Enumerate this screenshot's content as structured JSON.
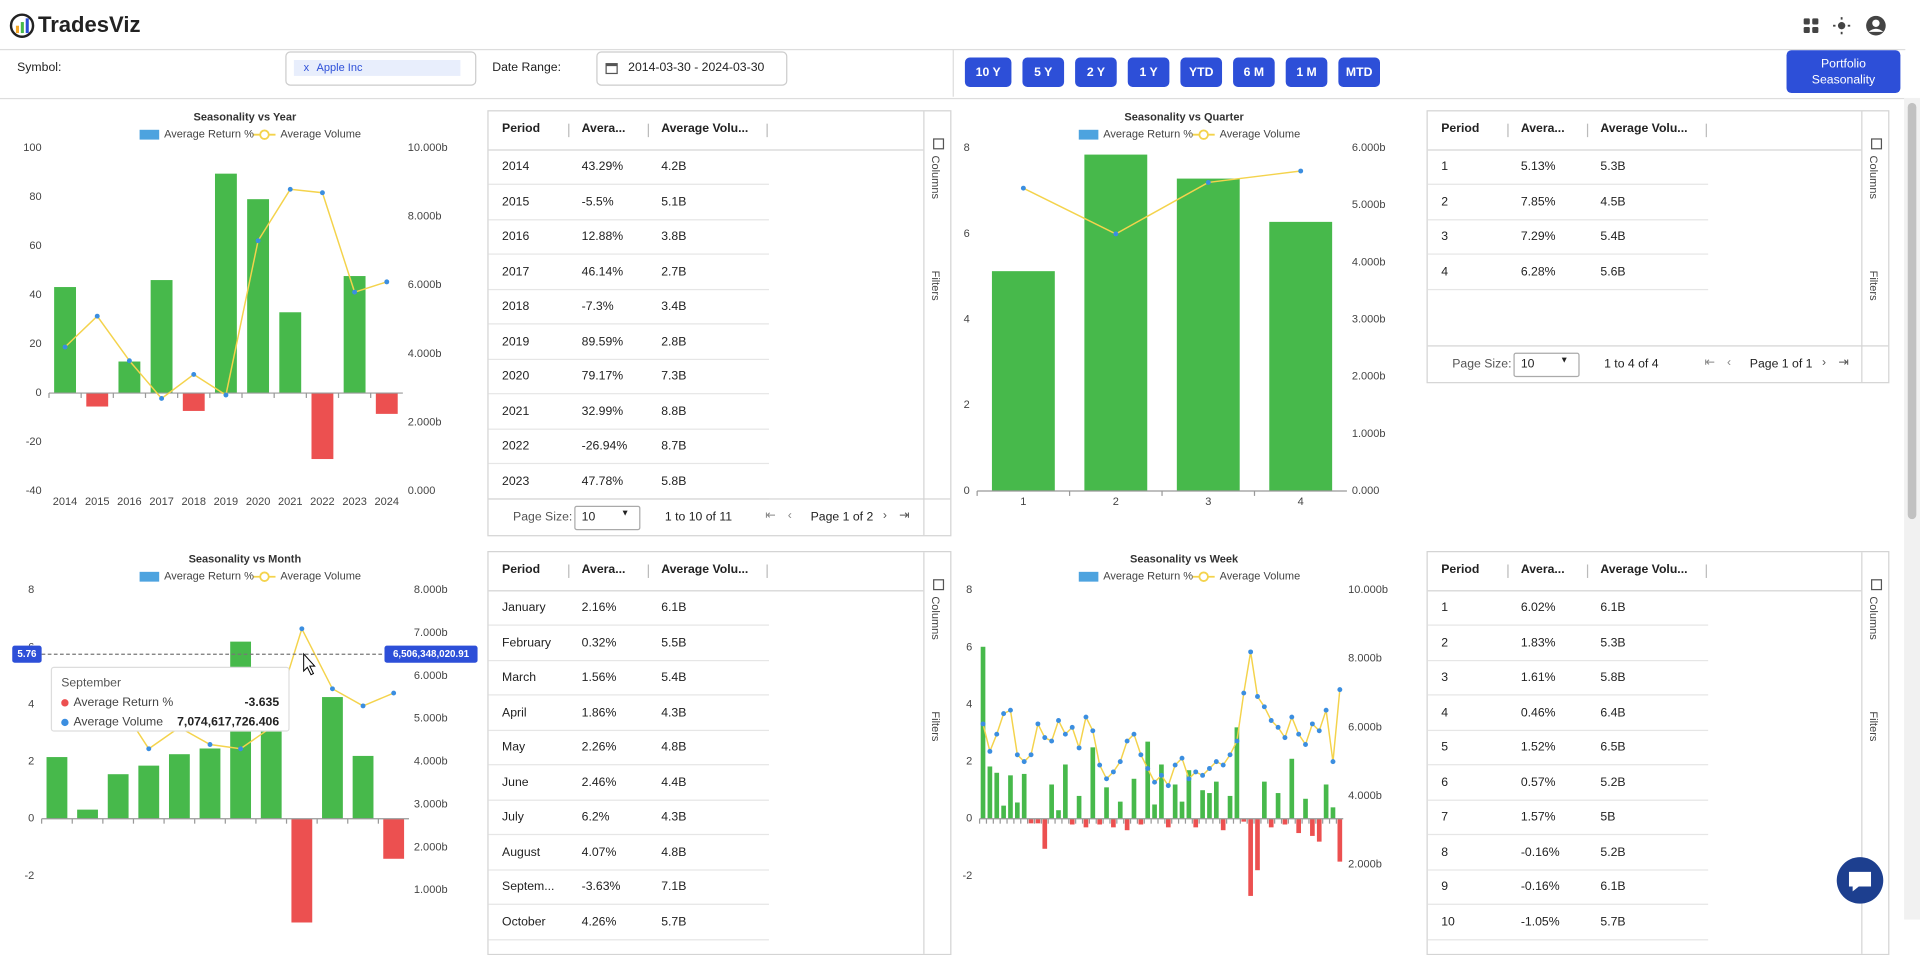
{
  "header": {
    "brand": "TradesViz"
  },
  "filters": {
    "symbol_label": "Symbol:",
    "symbol_chip_remove": "x",
    "symbol_value": "Apple Inc",
    "date_label": "Date Range:",
    "date_value": "2014-03-30 - 2024-03-30",
    "range_buttons": [
      "10 Y",
      "5 Y",
      "2 Y",
      "1 Y",
      "YTD",
      "6 M",
      "1 M",
      "MTD"
    ],
    "portfolio_button": "Portfolio Seasonality"
  },
  "chart_data": [
    {
      "type": "bar",
      "title": "Seasonality vs Year",
      "categories": [
        "2014",
        "2015",
        "2016",
        "2017",
        "2018",
        "2019",
        "2020",
        "2021",
        "2022",
        "2023",
        "2024"
      ],
      "series": [
        {
          "name": "Average Return %",
          "color": "#4da3df",
          "positive_color": "#47b94b",
          "negative_color": "#ec5050",
          "values": [
            43.29,
            -5.5,
            12.88,
            46.14,
            -7.3,
            89.59,
            79.17,
            32.99,
            -26.94,
            47.78,
            -8.5
          ]
        },
        {
          "name": "Average Volume",
          "type": "line",
          "axis": "y2",
          "color": "#f4d34c",
          "point_color": "#3b8ee0",
          "values": [
            4.2,
            5.1,
            3.8,
            2.7,
            3.4,
            2.8,
            7.3,
            8.8,
            8.7,
            5.8,
            6.1
          ]
        }
      ],
      "ylim": [
        -40,
        100
      ],
      "yticks": [
        -40,
        -20,
        0,
        20,
        40,
        60,
        80,
        100
      ],
      "y2lim": [
        0,
        10
      ],
      "y2ticks": [
        {
          "value": 0,
          "label": "0.000"
        },
        {
          "value": 2,
          "label": "2.000b"
        },
        {
          "value": 4,
          "label": "4.000b"
        },
        {
          "value": 6,
          "label": "6.000b"
        },
        {
          "value": 8,
          "label": "8.000b"
        },
        {
          "value": 10,
          "label": "10.000b"
        }
      ]
    },
    {
      "type": "bar",
      "title": "Seasonality vs Quarter",
      "categories": [
        "1",
        "2",
        "3",
        "4"
      ],
      "series": [
        {
          "name": "Average Return %",
          "color": "#4da3df",
          "positive_color": "#47b94b",
          "negative_color": "#ec5050",
          "values": [
            5.13,
            7.85,
            7.29,
            6.28
          ]
        },
        {
          "name": "Average Volume",
          "type": "line",
          "axis": "y2",
          "color": "#f4d34c",
          "point_color": "#3b8ee0",
          "values": [
            5.3,
            4.5,
            5.4,
            5.6
          ]
        }
      ],
      "ylim": [
        0,
        8
      ],
      "yticks": [
        0,
        2,
        4,
        6,
        8
      ],
      "y2lim": [
        0,
        6
      ],
      "y2ticks": [
        {
          "value": 0,
          "label": "0.000"
        },
        {
          "value": 1,
          "label": "1.000b"
        },
        {
          "value": 2,
          "label": "2.000b"
        },
        {
          "value": 3,
          "label": "3.000b"
        },
        {
          "value": 4,
          "label": "4.000b"
        },
        {
          "value": 5,
          "label": "5.000b"
        },
        {
          "value": 6,
          "label": "6.000b"
        }
      ]
    },
    {
      "type": "bar",
      "title": "Seasonality vs Month",
      "categories": [
        null,
        null,
        null,
        null,
        null,
        null,
        null,
        null,
        null,
        null,
        null,
        null
      ],
      "series": [
        {
          "name": "Average Return %",
          "color": "#4da3df",
          "positive_color": "#47b94b",
          "negative_color": "#ec5050",
          "values": [
            2.16,
            0.32,
            1.56,
            1.86,
            2.26,
            2.46,
            6.2,
            4.07,
            -3.63,
            4.26,
            2.2,
            -1.4
          ]
        },
        {
          "name": "Average Volume",
          "type": "line",
          "axis": "y2",
          "color": "#f4d34c",
          "point_color": "#3b8ee0",
          "values": [
            6.1,
            5.5,
            5.4,
            4.3,
            4.8,
            4.4,
            4.3,
            4.8,
            7.1,
            5.7,
            5.3,
            5.6
          ]
        }
      ],
      "ylim": [
        -4,
        8
      ],
      "yticks": [
        -2,
        0,
        2,
        4,
        6,
        8
      ],
      "y2lim": [
        0,
        8
      ],
      "y2ticks": [
        {
          "value": 1,
          "label": "1.000b"
        },
        {
          "value": 2,
          "label": "2.000b"
        },
        {
          "value": 3,
          "label": "3.000b"
        },
        {
          "value": 4,
          "label": "4.000b"
        },
        {
          "value": 5,
          "label": "5.000b"
        },
        {
          "value": 6,
          "label": "6.000b"
        },
        {
          "value": 7,
          "label": "7.000b"
        },
        {
          "value": 8,
          "label": "8.000b"
        }
      ],
      "crosshair": {
        "value": 5.76,
        "label": "5.76",
        "y2_label": "6,506,348,020.91"
      },
      "tooltip": {
        "title": "September",
        "rows": [
          {
            "name": "Average Return %",
            "value": "-3.635"
          },
          {
            "name": "Average Volume",
            "value": "7,074,617,726.406"
          }
        ]
      }
    },
    {
      "type": "bar",
      "title": "Seasonality vs Week",
      "categories": [
        null,
        null,
        null,
        null,
        null,
        null,
        null,
        null,
        null,
        null,
        null,
        null,
        null,
        null,
        null,
        null,
        null,
        null,
        null,
        null,
        null,
        null,
        null,
        null,
        null,
        null,
        null,
        null,
        null,
        null,
        null,
        null,
        null,
        null,
        null,
        null,
        null,
        null,
        null,
        null,
        null,
        null,
        null,
        null,
        null,
        null,
        null,
        null,
        null,
        null,
        null,
        null,
        null
      ],
      "series": [
        {
          "name": "Average Return %",
          "color": "#4da3df",
          "positive_color": "#47b94b",
          "negative_color": "#ec5050",
          "values": [
            6.02,
            1.83,
            1.61,
            0.46,
            1.52,
            0.57,
            1.57,
            -0.16,
            -0.16,
            -1.05,
            1.2,
            0.3,
            1.9,
            -0.2,
            0.8,
            -0.3,
            2.5,
            -0.2,
            1.1,
            -0.3,
            0.6,
            -0.4,
            1.4,
            -0.2,
            2.7,
            0.5,
            1.9,
            -0.3,
            1.2,
            0.6,
            1.7,
            -0.3,
            1.0,
            0.9,
            1.3,
            -0.4,
            0.8,
            3.2,
            -0.1,
            -2.7,
            -1.8,
            1.3,
            -0.3,
            0.9,
            -0.2,
            2.1,
            -0.5,
            0.7,
            -0.6,
            -0.8,
            1.2,
            0.4,
            -1.5
          ]
        },
        {
          "name": "Average Volume",
          "type": "line",
          "axis": "y2",
          "color": "#f4d34c",
          "point_color": "#3b8ee0",
          "values": [
            6.1,
            5.3,
            5.8,
            6.4,
            6.5,
            5.2,
            5.0,
            5.2,
            6.1,
            5.7,
            5.6,
            6.2,
            5.8,
            6.0,
            5.4,
            6.3,
            5.9,
            4.9,
            4.5,
            4.7,
            5.0,
            5.6,
            5.8,
            5.2,
            4.8,
            4.4,
            4.6,
            4.3,
            4.9,
            5.1,
            4.5,
            4.7,
            4.6,
            4.8,
            5.0,
            4.9,
            5.2,
            5.6,
            7.0,
            8.2,
            6.9,
            6.6,
            6.2,
            6.0,
            5.7,
            6.3,
            5.8,
            5.5,
            6.1,
            5.9,
            6.5,
            5.0,
            7.1
          ]
        }
      ],
      "ylim": [
        -4,
        8
      ],
      "yticks": [
        -2,
        0,
        2,
        4,
        6,
        8
      ],
      "y2lim": [
        0,
        10
      ],
      "y2ticks": [
        {
          "value": 2,
          "label": "2.000b"
        },
        {
          "value": 4,
          "label": "4.000b"
        },
        {
          "value": 6,
          "label": "6.000b"
        },
        {
          "value": 8,
          "label": "8.000b"
        },
        {
          "value": 10,
          "label": "10.000b"
        }
      ]
    }
  ],
  "tables": [
    {
      "headers": [
        "Period",
        "Avera...",
        "Average Volu..."
      ],
      "rows": [
        [
          "2014",
          "43.29%",
          "4.2B"
        ],
        [
          "2015",
          "-5.5%",
          "5.1B"
        ],
        [
          "2016",
          "12.88%",
          "3.8B"
        ],
        [
          "2017",
          "46.14%",
          "2.7B"
        ],
        [
          "2018",
          "-7.3%",
          "3.4B"
        ],
        [
          "2019",
          "89.59%",
          "2.8B"
        ],
        [
          "2020",
          "79.17%",
          "7.3B"
        ],
        [
          "2021",
          "32.99%",
          "8.8B"
        ],
        [
          "2022",
          "-26.94%",
          "8.7B"
        ],
        [
          "2023",
          "47.78%",
          "5.8B"
        ]
      ],
      "side_tabs": [
        "Columns",
        "Filters"
      ],
      "footer": {
        "page_size_label": "Page Size:",
        "page_size": "10",
        "range": "1 to 10 of 11",
        "page": "Page 1 of 2"
      }
    },
    {
      "headers": [
        "Period",
        "Avera...",
        "Average Volu..."
      ],
      "rows": [
        [
          "1",
          "5.13%",
          "5.3B"
        ],
        [
          "2",
          "7.85%",
          "4.5B"
        ],
        [
          "3",
          "7.29%",
          "5.4B"
        ],
        [
          "4",
          "6.28%",
          "5.6B"
        ]
      ],
      "side_tabs": [
        "Columns",
        "Filters"
      ],
      "footer": {
        "page_size_label": "Page Size:",
        "page_size": "10",
        "range": "1 to 4 of 4",
        "page": "Page 1 of 1"
      }
    },
    {
      "headers": [
        "Period",
        "Avera...",
        "Average Volu..."
      ],
      "rows": [
        [
          "January",
          "2.16%",
          "6.1B"
        ],
        [
          "February",
          "0.32%",
          "5.5B"
        ],
        [
          "March",
          "1.56%",
          "5.4B"
        ],
        [
          "April",
          "1.86%",
          "4.3B"
        ],
        [
          "May",
          "2.26%",
          "4.8B"
        ],
        [
          "June",
          "2.46%",
          "4.4B"
        ],
        [
          "July",
          "6.2%",
          "4.3B"
        ],
        [
          "August",
          "4.07%",
          "4.8B"
        ],
        [
          "Septem...",
          "-3.63%",
          "7.1B"
        ],
        [
          "October",
          "4.26%",
          "5.7B"
        ]
      ],
      "side_tabs": [
        "Columns",
        "Filters"
      ]
    },
    {
      "headers": [
        "Period",
        "Avera...",
        "Average Volu..."
      ],
      "rows": [
        [
          "1",
          "6.02%",
          "6.1B"
        ],
        [
          "2",
          "1.83%",
          "5.3B"
        ],
        [
          "3",
          "1.61%",
          "5.8B"
        ],
        [
          "4",
          "0.46%",
          "6.4B"
        ],
        [
          "5",
          "1.52%",
          "6.5B"
        ],
        [
          "6",
          "0.57%",
          "5.2B"
        ],
        [
          "7",
          "1.57%",
          "5B"
        ],
        [
          "8",
          "-0.16%",
          "5.2B"
        ],
        [
          "9",
          "-0.16%",
          "6.1B"
        ],
        [
          "10",
          "-1.05%",
          "5.7B"
        ]
      ],
      "side_tabs": [
        "Columns",
        "Filters"
      ]
    }
  ]
}
